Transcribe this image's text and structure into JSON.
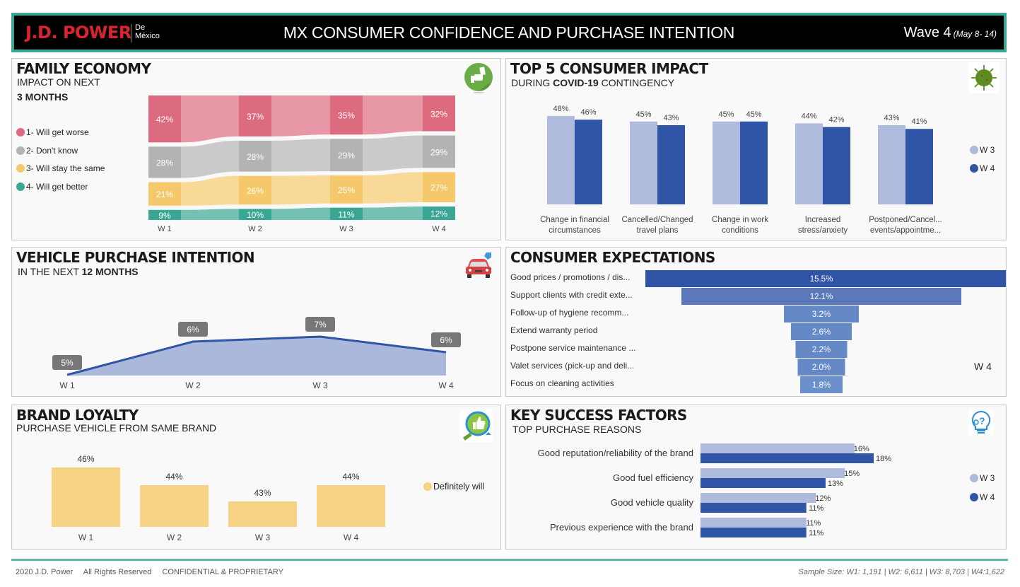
{
  "header": {
    "logo": "J.D. POWER",
    "logo_sub_1": "De",
    "logo_sub_2": "México",
    "title": "MX CONSUMER CONFIDENCE AND PURCHASE INTENTION",
    "wave": "Wave 4",
    "wave_dates": "(May 8- 14)"
  },
  "family_economy": {
    "title": "FAMILY ECONOMY",
    "subtitle": "IMPACT ON NEXT",
    "subtitle_bold": "3 MONTHS",
    "icon": "money-hand-icon",
    "legend": [
      {
        "label": "1- Will get worse",
        "color": "#dd6b7f"
      },
      {
        "label": "2- Don't know",
        "color": "#b3b3b3"
      },
      {
        "label": "3- Will stay the same",
        "color": "#f5c96b"
      },
      {
        "label": "4- Will get better",
        "color": "#3aa794"
      }
    ]
  },
  "top5": {
    "title": "TOP 5 CONSUMER IMPACT",
    "subtitle_pre": "DURING ",
    "subtitle_bold": "COVID-19",
    "subtitle_post": " CONTINGENCY",
    "icon": "covid-virus-icon",
    "legend": [
      {
        "label": "W 3",
        "color": "#aebbdc"
      },
      {
        "label": "W 4",
        "color": "#3055a6"
      }
    ]
  },
  "vehicle_purchase": {
    "title": "VEHICLE PURCHASE INTENTION",
    "subtitle": "IN THE NEXT ",
    "subtitle_bold": "12 MONTHS",
    "icon": "car-tag-icon"
  },
  "consumer_expectations": {
    "title": "CONSUMER EXPECTATIONS",
    "legend_label": "W 4"
  },
  "brand_loyalty": {
    "title": "BRAND LOYALTY",
    "subtitle": "PURCHASE VEHICLE FROM SAME BRAND",
    "icon": "thumbs-up-magnifier-icon",
    "legend": [
      {
        "label": "Definitely will",
        "color": "#f6d285"
      }
    ]
  },
  "key_success": {
    "title": "KEY SUCCESS FACTORS",
    "subtitle": "TOP PURCHASE REASONS",
    "icon": "lightbulb-question-icon",
    "legend": [
      {
        "label": "W 3",
        "color": "#aebbdc"
      },
      {
        "label": "W 4",
        "color": "#3055a6"
      }
    ]
  },
  "footer": {
    "copyright": "2020 J.D. Power",
    "rights": "All Rights Reserved",
    "confidential": "CONFIDENTIAL & PROPRIETARY",
    "sample_size": "Sample Size: W1: 1,191 | W2: 6,611 | W3:  8,703 | W4:1,622"
  },
  "chart_data": [
    {
      "id": "family_economy",
      "type": "bar",
      "subtype": "ribbon-stacked",
      "title": "FAMILY ECONOMY",
      "categories": [
        "W 1",
        "W 2",
        "W 3",
        "W 4"
      ],
      "series": [
        {
          "name": "1- Will get worse",
          "values": [
            42,
            37,
            35,
            32
          ],
          "color": "#dd6b7f"
        },
        {
          "name": "2- Don't know",
          "values": [
            28,
            28,
            29,
            29
          ],
          "color": "#b3b3b3"
        },
        {
          "name": "3- Will stay the same",
          "values": [
            21,
            26,
            25,
            27
          ],
          "color": "#f5c96b"
        },
        {
          "name": "4- Will get better",
          "values": [
            9,
            10,
            11,
            12
          ],
          "color": "#3aa794"
        }
      ],
      "value_format": "%",
      "legend": "left"
    },
    {
      "id": "top5",
      "type": "bar",
      "title": "TOP 5 CONSUMER IMPACT",
      "categories": [
        "Change in financial circumstances",
        "Cancelled/Changed travel plans",
        "Change in work conditions",
        "Increased stress/anxiety",
        "Postponed/Cancel... events/appointme..."
      ],
      "category_lines": [
        [
          "Change in financial",
          "circumstances"
        ],
        [
          "Cancelled/Changed",
          "travel plans"
        ],
        [
          "Change in work",
          "conditions"
        ],
        [
          "Increased",
          "stress/anxiety"
        ],
        [
          "Postponed/Cancel...",
          "events/appointme..."
        ]
      ],
      "series": [
        {
          "name": "W 3",
          "values": [
            48,
            45,
            45,
            44,
            43
          ],
          "color": "#aebbdc"
        },
        {
          "name": "W 4",
          "values": [
            46,
            43,
            45,
            42,
            41
          ],
          "color": "#3055a6"
        }
      ],
      "ylim": [
        0,
        50
      ],
      "legend": "right"
    },
    {
      "id": "vehicle_purchase",
      "type": "area",
      "title": "VEHICLE PURCHASE INTENTION",
      "categories": [
        "W 1",
        "W 2",
        "W 3",
        "W 4"
      ],
      "values": [
        5,
        6,
        7,
        6
      ],
      "value_format": "%",
      "color": "#3055a6",
      "fill": "#aab8db"
    },
    {
      "id": "consumer_expectations",
      "type": "bar",
      "subtype": "funnel",
      "title": "CONSUMER EXPECTATIONS",
      "categories": [
        "Good prices / promotions / dis...",
        "Support clients with credit exte...",
        "Follow-up of hygiene recomm...",
        "Extend warranty period",
        "Postpone service maintenance ...",
        "Valet services (pick-up and deli...",
        "Focus on cleaning activities"
      ],
      "values": [
        15.5,
        12.1,
        3.2,
        2.6,
        2.2,
        2.0,
        1.8
      ],
      "labels": [
        "15.5%",
        "12.1%",
        "3.2%",
        "2.6%",
        "2.2%",
        "2.0%",
        "1.8%"
      ],
      "colors": [
        "#3055a6",
        "#5b79ba",
        "#6589c7",
        "#6589c7",
        "#6589c7",
        "#6589c7",
        "#6a8fca"
      ],
      "series_name": "W 4"
    },
    {
      "id": "brand_loyalty",
      "type": "bar",
      "title": "BRAND LOYALTY",
      "categories": [
        "W 1",
        "W 2",
        "W 3",
        "W 4"
      ],
      "values": [
        46,
        44,
        43,
        44
      ],
      "series_name": "Definitely will",
      "color": "#f6d285",
      "legend": "right"
    },
    {
      "id": "key_success",
      "type": "bar",
      "orientation": "horizontal",
      "title": "KEY SUCCESS FACTORS",
      "categories": [
        "Good reputation/reliability of the brand",
        "Good fuel efficiency",
        "Good vehicle quality",
        "Previous experience with the brand"
      ],
      "series": [
        {
          "name": "W 3",
          "values": [
            16,
            15,
            12,
            11
          ],
          "color": "#aebbdc"
        },
        {
          "name": "W 4",
          "values": [
            18,
            13,
            11,
            11
          ],
          "color": "#3055a6"
        }
      ],
      "legend": "right"
    }
  ]
}
